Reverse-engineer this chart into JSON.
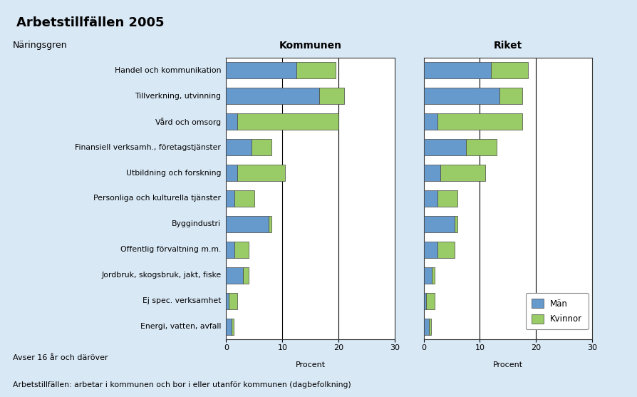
{
  "title": "Arbetstillfällen 2005",
  "subtitle": "Näringsgren",
  "categories": [
    "Handel och kommunikation",
    "Tillverkning, utvinning",
    "Vård och omsorg",
    "Finansiell verksamh., företagstjänster",
    "Utbildning och forskning",
    "Personliga och kulturella tjänster",
    "Byggindustri",
    "Offentlig förvaltning m.m.",
    "Jordbruk, skogsbruk, jakt, fiske",
    "Ej spec. verksamhet",
    "Energi, vatten, avfall"
  ],
  "kommunen_man": [
    12.5,
    16.5,
    2.0,
    4.5,
    2.0,
    1.5,
    7.5,
    1.5,
    3.0,
    0.5,
    1.0
  ],
  "kommunen_kvinna": [
    7.0,
    4.5,
    18.0,
    3.5,
    8.5,
    3.5,
    0.5,
    2.5,
    1.0,
    1.5,
    0.3
  ],
  "riket_man": [
    12.0,
    13.5,
    2.5,
    7.5,
    3.0,
    2.5,
    5.5,
    2.5,
    1.5,
    0.5,
    1.0
  ],
  "riket_kvinna": [
    6.5,
    4.0,
    15.0,
    5.5,
    8.0,
    3.5,
    0.5,
    3.0,
    0.5,
    1.5,
    0.3
  ],
  "color_man": "#6699CC",
  "color_kvinna": "#99CC66",
  "xlabel": "Procent",
  "footer_left": "Avser 16 år och däröver",
  "footer_main": "Arbetstillfällen: arbetar i kommunen och bor i eller utanför kommunen (dagbefolkning)",
  "legend_man": "Män",
  "legend_kvinna": "Kvinnor",
  "kommunen_title": "Kommunen",
  "riket_title": "Riket",
  "bg_color": "#D9E8F5",
  "plot_bg": "#FFFFFF",
  "title_bg": "#C8DCF0"
}
